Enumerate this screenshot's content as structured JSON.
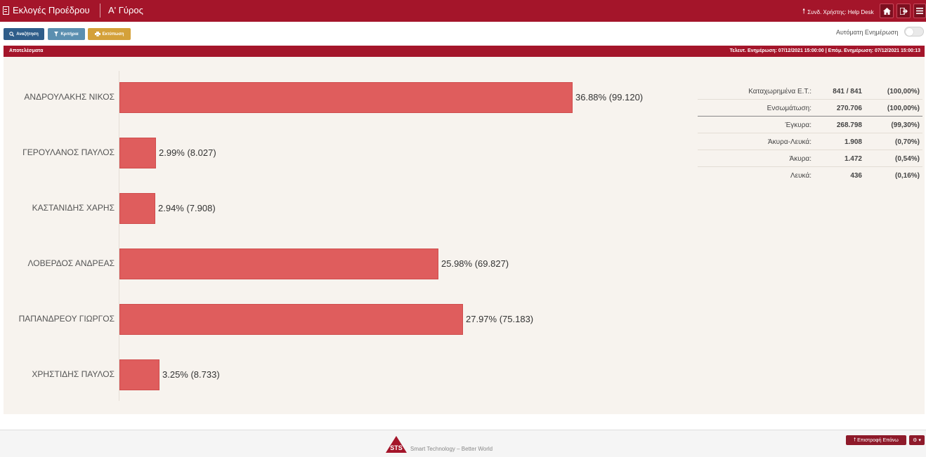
{
  "header": {
    "app_title": "Εκλογές Προέδρου",
    "round": "Α' Γύρος",
    "user_label": "Συνδ. Χρήστης: Help Desk",
    "colors": {
      "primary": "#a4152a"
    }
  },
  "toolbar": {
    "search_label": "Αναζήτηση",
    "filter_label": "Κριτήρια",
    "print_label": "Εκτύπωση",
    "auto_update_label": "Αυτόματη Ενημέρωση"
  },
  "panel": {
    "title": "Αποτελέσματα",
    "update_times": "Τελευτ. Ενημέρωση: 07/12/2021 15:00:00  |  Επόμ. Ενημέρωση: 07/12/2021 15:00:13"
  },
  "chart_data": {
    "type": "bar",
    "orientation": "horizontal",
    "categories": [
      "ΑΝΔΡΟΥΛΑΚΗΣ ΝΙΚΟΣ",
      "ΓΕΡΟΥΛΑΝΟΣ ΠΑΥΛΟΣ",
      "ΚΑΣΤΑΝΙΔΗΣ ΧΑΡΗΣ",
      "ΛΟΒΕΡΔΟΣ ΑΝΔΡΕΑΣ",
      "ΠΑΠΑΝΔΡΕΟΥ ΓΙΩΡΓΟΣ",
      "ΧΡΗΣΤΙΔΗΣ ΠΑΥΛΟΣ"
    ],
    "values": [
      36.88,
      2.99,
      2.94,
      25.98,
      27.97,
      3.25
    ],
    "votes": [
      99120,
      8027,
      7908,
      69827,
      75183,
      8733
    ],
    "data_labels": [
      "36.88% (99.120)",
      "2.99% (8.027)",
      "2.94% (7.908)",
      "25.98% (69.827)",
      "27.97% (75.183)",
      "3.25% (8.733)"
    ],
    "bar_color": "#df5d5d",
    "xlim": [
      0,
      36.88
    ]
  },
  "stats": [
    {
      "label": "Καταχωρημένα Ε.Τ.:",
      "value": "841 / 841",
      "percent": "(100,00%)"
    },
    {
      "label": "Ενσωμάτωση:",
      "value": "270.706",
      "percent": "(100,00%)"
    },
    {
      "label": "Έγκυρα:",
      "value": "268.798",
      "percent": "(99,30%)"
    },
    {
      "label": "Άκυρα-Λευκά:",
      "value": "1.908",
      "percent": "(0,70%)"
    },
    {
      "label": "Άκυρα:",
      "value": "1.472",
      "percent": "(0,54%)"
    },
    {
      "label": "Λευκά:",
      "value": "436",
      "percent": "(0,16%)"
    }
  ],
  "footer": {
    "logo_text": "STS",
    "tagline": "Smart Technology – Better World",
    "back_to_top_label": "Επιστροφή Επάνω"
  }
}
